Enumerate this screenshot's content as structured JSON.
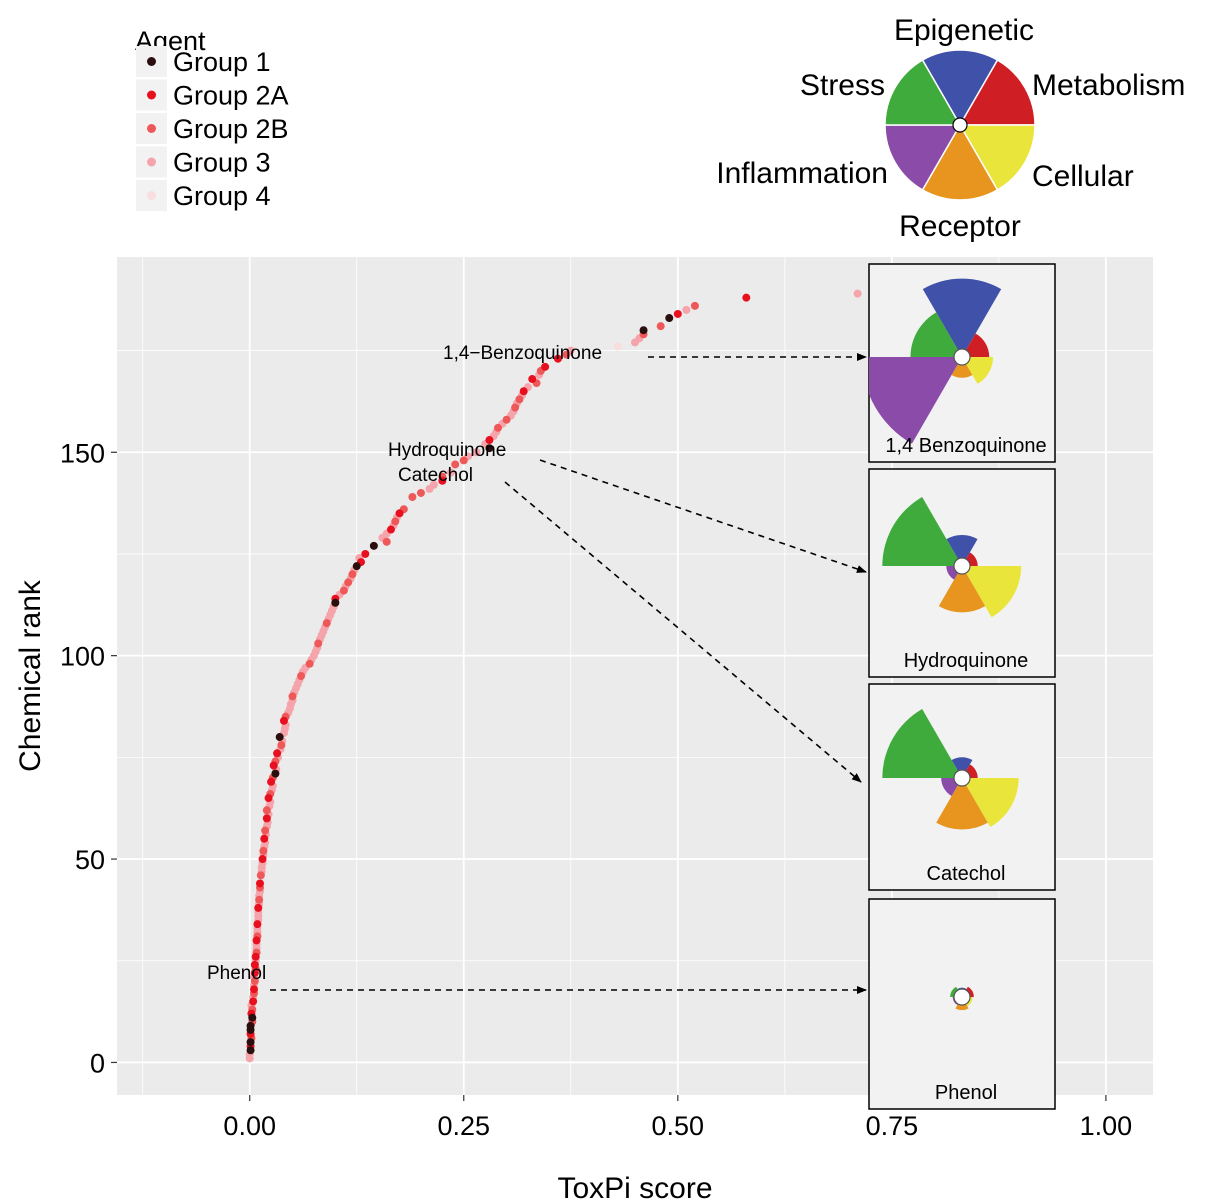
{
  "chart_data": {
    "type": "scatter",
    "xlabel": "ToxPi score",
    "ylabel": "Chemical rank",
    "xlim": [
      -0.155,
      1.055
    ],
    "ylim": [
      -8,
      198
    ],
    "x_ticks": [
      0.0,
      0.25,
      0.5,
      0.75,
      1.0
    ],
    "x_tick_labels": [
      "0.00",
      "0.25",
      "0.50",
      "0.75",
      "1.00"
    ],
    "y_ticks": [
      0,
      50,
      100,
      150
    ],
    "y_tick_labels": [
      "0",
      "50",
      "100",
      "150"
    ],
    "grid": true,
    "legend": {
      "title": "Agent",
      "placement": "top-left",
      "entries": [
        {
          "label": "Group 1",
          "color": "#2b0e0e"
        },
        {
          "label": "Group 2A",
          "color": "#e8101e"
        },
        {
          "label": "Group 2B",
          "color": "#ef5858"
        },
        {
          "label": "Group 3",
          "color": "#f4a4aa"
        },
        {
          "label": "Group 4",
          "color": "#f8dede"
        }
      ]
    },
    "key_slices": [
      {
        "label": "Epigenetic",
        "color": "#3f51a8"
      },
      {
        "label": "Metabolism",
        "color": "#cf1f25"
      },
      {
        "label": "Cellular",
        "color": "#e9e53a"
      },
      {
        "label": "Receptor",
        "color": "#e8951f"
      },
      {
        "label": "Inflammation",
        "color": "#8a4ca8"
      },
      {
        "label": "Stress",
        "color": "#3eab3c"
      }
    ],
    "annotations": [
      {
        "text": "1,4−Benzoquinone",
        "x": 0.41,
        "y": 175
      },
      {
        "text": "Hydroquinone",
        "x": 0.28,
        "y": 152
      },
      {
        "text": "Catechol",
        "x": 0.27,
        "y": 146
      },
      {
        "text": "Phenol",
        "x": -0.01,
        "y": 28
      }
    ],
    "profiles": [
      {
        "label": "1,4 Benzoquinone",
        "slices": [
          0.55,
          0.15,
          0.18,
          0.1,
          0.72,
          0.34
        ]
      },
      {
        "label": "Hydroquinone",
        "slices": [
          0.18,
          0.06,
          0.4,
          0.3,
          0.06,
          0.56
        ]
      },
      {
        "label": "Catechol",
        "slices": [
          0.1,
          0.06,
          0.38,
          0.34,
          0.1,
          0.56
        ]
      },
      {
        "label": "Phenol",
        "slices": [
          0.01,
          0.03,
          0.02,
          0.04,
          0.01,
          0.03
        ]
      }
    ],
    "series": [
      {
        "name": "Group 1",
        "points": [
          [
            0.001,
            3
          ],
          [
            0.001,
            5
          ],
          [
            0.001,
            8
          ],
          [
            0.001,
            9
          ],
          [
            0.003,
            11
          ],
          [
            0.03,
            71
          ],
          [
            0.035,
            80
          ],
          [
            0.1,
            113
          ],
          [
            0.125,
            122
          ],
          [
            0.145,
            127
          ],
          [
            0.28,
            151
          ],
          [
            0.46,
            180
          ],
          [
            0.49,
            183
          ]
        ]
      },
      {
        "name": "Group 2A",
        "points": [
          [
            0.001,
            4
          ],
          [
            0.001,
            7
          ],
          [
            0.002,
            12
          ],
          [
            0.004,
            15
          ],
          [
            0.005,
            18
          ],
          [
            0.006,
            22
          ],
          [
            0.006,
            24
          ],
          [
            0.007,
            26
          ],
          [
            0.008,
            30
          ],
          [
            0.009,
            34
          ],
          [
            0.01,
            38
          ],
          [
            0.012,
            44
          ],
          [
            0.015,
            50
          ],
          [
            0.017,
            55
          ],
          [
            0.02,
            60
          ],
          [
            0.022,
            65
          ],
          [
            0.025,
            69
          ],
          [
            0.028,
            73
          ],
          [
            0.032,
            76
          ],
          [
            0.04,
            84
          ],
          [
            0.1,
            114
          ],
          [
            0.13,
            123
          ],
          [
            0.135,
            125
          ],
          [
            0.165,
            131
          ],
          [
            0.175,
            135
          ],
          [
            0.225,
            143
          ],
          [
            0.28,
            153
          ],
          [
            0.32,
            165
          ],
          [
            0.33,
            168
          ],
          [
            0.345,
            171
          ],
          [
            0.36,
            173
          ],
          [
            0.5,
            184
          ],
          [
            0.58,
            188
          ]
        ]
      },
      {
        "name": "Group 2B",
        "points": [
          [
            0.002,
            6
          ],
          [
            0.003,
            10
          ],
          [
            0.003,
            13
          ],
          [
            0.005,
            17
          ],
          [
            0.006,
            20
          ],
          [
            0.007,
            23
          ],
          [
            0.008,
            27
          ],
          [
            0.009,
            31
          ],
          [
            0.011,
            40
          ],
          [
            0.012,
            43
          ],
          [
            0.013,
            46
          ],
          [
            0.016,
            52
          ],
          [
            0.018,
            57
          ],
          [
            0.02,
            62
          ],
          [
            0.024,
            66
          ],
          [
            0.027,
            70
          ],
          [
            0.03,
            74
          ],
          [
            0.037,
            78
          ],
          [
            0.042,
            85
          ],
          [
            0.05,
            90
          ],
          [
            0.06,
            95
          ],
          [
            0.07,
            98
          ],
          [
            0.08,
            103
          ],
          [
            0.09,
            108
          ],
          [
            0.11,
            116
          ],
          [
            0.115,
            118
          ],
          [
            0.12,
            120
          ],
          [
            0.16,
            128
          ],
          [
            0.17,
            133
          ],
          [
            0.18,
            136
          ],
          [
            0.19,
            139
          ],
          [
            0.2,
            140
          ],
          [
            0.225,
            144
          ],
          [
            0.24,
            147
          ],
          [
            0.25,
            148
          ],
          [
            0.29,
            156
          ],
          [
            0.3,
            158
          ],
          [
            0.31,
            161
          ],
          [
            0.315,
            163
          ],
          [
            0.335,
            167
          ],
          [
            0.34,
            170
          ],
          [
            0.37,
            174
          ],
          [
            0.46,
            179
          ],
          [
            0.48,
            181
          ],
          [
            0.52,
            186
          ]
        ]
      },
      {
        "name": "Group 3",
        "points": [
          [
            0.0,
            1
          ],
          [
            0.0,
            2
          ],
          [
            0.002,
            14
          ],
          [
            0.004,
            16
          ],
          [
            0.005,
            19
          ],
          [
            0.005,
            21
          ],
          [
            0.007,
            25
          ],
          [
            0.008,
            28
          ],
          [
            0.008,
            29
          ],
          [
            0.009,
            32
          ],
          [
            0.009,
            33
          ],
          [
            0.01,
            35
          ],
          [
            0.01,
            36
          ],
          [
            0.01,
            37
          ],
          [
            0.011,
            39
          ],
          [
            0.011,
            41
          ],
          [
            0.012,
            42
          ],
          [
            0.014,
            47
          ],
          [
            0.014,
            48
          ],
          [
            0.015,
            49
          ],
          [
            0.016,
            51
          ],
          [
            0.017,
            53
          ],
          [
            0.018,
            54
          ],
          [
            0.019,
            56
          ],
          [
            0.02,
            58
          ],
          [
            0.021,
            59
          ],
          [
            0.022,
            61
          ],
          [
            0.023,
            63
          ],
          [
            0.024,
            64
          ],
          [
            0.026,
            67
          ],
          [
            0.027,
            68
          ],
          [
            0.031,
            72
          ],
          [
            0.033,
            75
          ],
          [
            0.036,
            77
          ],
          [
            0.038,
            79
          ],
          [
            0.04,
            81
          ],
          [
            0.041,
            82
          ],
          [
            0.042,
            83
          ],
          [
            0.045,
            86
          ],
          [
            0.047,
            87
          ],
          [
            0.048,
            88
          ],
          [
            0.05,
            89
          ],
          [
            0.052,
            91
          ],
          [
            0.054,
            92
          ],
          [
            0.056,
            93
          ],
          [
            0.058,
            94
          ],
          [
            0.062,
            96
          ],
          [
            0.065,
            97
          ],
          [
            0.072,
            99
          ],
          [
            0.075,
            100
          ],
          [
            0.077,
            101
          ],
          [
            0.079,
            102
          ],
          [
            0.082,
            104
          ],
          [
            0.084,
            105
          ],
          [
            0.086,
            106
          ],
          [
            0.088,
            107
          ],
          [
            0.092,
            109
          ],
          [
            0.094,
            110
          ],
          [
            0.096,
            111
          ],
          [
            0.098,
            112
          ],
          [
            0.105,
            115
          ],
          [
            0.112,
            117
          ],
          [
            0.118,
            119
          ],
          [
            0.122,
            121
          ],
          [
            0.128,
            124
          ],
          [
            0.155,
            129
          ],
          [
            0.16,
            130
          ],
          [
            0.168,
            132
          ],
          [
            0.172,
            134
          ],
          [
            0.21,
            141
          ],
          [
            0.215,
            142
          ],
          [
            0.235,
            145
          ],
          [
            0.255,
            149
          ],
          [
            0.265,
            150
          ],
          [
            0.275,
            152
          ],
          [
            0.285,
            154
          ],
          [
            0.288,
            155
          ],
          [
            0.295,
            157
          ],
          [
            0.305,
            159
          ],
          [
            0.308,
            160
          ],
          [
            0.312,
            162
          ],
          [
            0.318,
            164
          ],
          [
            0.325,
            166
          ],
          [
            0.338,
            169
          ],
          [
            0.375,
            175
          ],
          [
            0.45,
            177
          ],
          [
            0.455,
            178
          ],
          [
            0.51,
            185
          ],
          [
            0.71,
            189
          ]
        ]
      },
      {
        "name": "Group 4",
        "points": [
          [
            0.43,
            176
          ]
        ]
      }
    ]
  }
}
